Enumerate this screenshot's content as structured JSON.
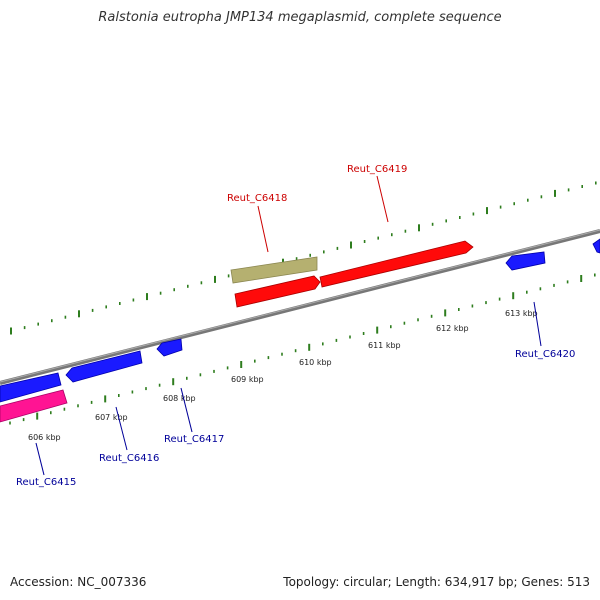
{
  "title": "Ralstonia eutropha JMP134 megaplasmid, complete sequence",
  "accession": "Accession: NC_007336",
  "summary": "Topology: circular; Length: 634,917 bp; Genes: 513",
  "ticks": [
    "606 kbp",
    "607 kbp",
    "608 kbp",
    "609 kbp",
    "610 kbp",
    "611 kbp",
    "612 kbp",
    "613 kbp"
  ],
  "genes": [
    {
      "label": "Reut_C6415",
      "color": "#000099"
    },
    {
      "label": "Reut_C6416",
      "color": "#000099"
    },
    {
      "label": "Reut_C6417",
      "color": "#000099"
    },
    {
      "label": "Reut_C6418",
      "color": "#cc0000"
    },
    {
      "label": "Reut_C6419",
      "color": "#cc0000"
    },
    {
      "label": "Reut_C6420",
      "color": "#000099"
    }
  ],
  "colors": {
    "backbone": "#888888",
    "tick": "#2e7d1e",
    "gene_blue": "#1a1aff",
    "gene_red": "#ff0a0a",
    "gene_pink": "#ff1493",
    "gene_olive": "#b5b070"
  }
}
